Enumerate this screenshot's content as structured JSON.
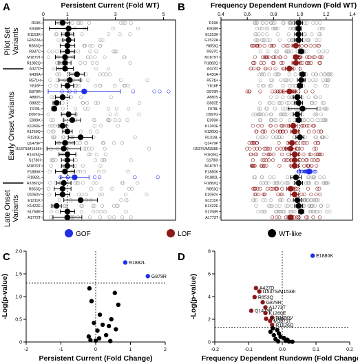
{
  "colors": {
    "gof": "#1f2ee6",
    "lof": "#8b1a1a",
    "wt": "#000000",
    "scatter_gray": "#9a9a9a"
  },
  "legend": {
    "gof": "GOF",
    "lof": "LOF",
    "wt": "WT-like"
  },
  "groups": {
    "pilot": [
      "Pilot Set",
      "Variants"
    ],
    "early": "Early Onset Variants",
    "late": [
      "Late Onset",
      "Variants"
    ]
  },
  "chart_data": [
    {
      "panel": "A",
      "type": "scatter",
      "title": "Persistent Current (Fold WT)",
      "xlim": [
        0,
        5.5
      ],
      "xticks": [
        0,
        1,
        3,
        5
      ],
      "categories": [
        "R19K",
        "K908R",
        "E1153K",
        "G1522A",
        "R853Q",
        "R937C",
        "M1879T",
        "R1882Q",
        "A427D",
        "E430A",
        "R571H",
        "Y816F",
        "G879R",
        "A880S",
        "G882E",
        "F978L",
        "D997G",
        "E999K",
        "K1260E",
        "K1260Q",
        "R1319L",
        "Q1479P",
        "I1537S/M1538I",
        "R1626Q",
        "S1780I",
        "M1879T",
        "E1880K",
        "R1882L",
        "R1882Q",
        "R853Q",
        "D1050V",
        "E1211K",
        "K1422E",
        "S1758R",
        "A1773T"
      ],
      "means": [
        0.8,
        1.05,
        1.0,
        1.05,
        1.0,
        1.0,
        0.9,
        0.9,
        0.9,
        1.4,
        1.1,
        1.0,
        1.7,
        0.8,
        0.55,
        0.45,
        1.05,
        1.2,
        0.8,
        1.0,
        1.55,
        0.9,
        0.85,
        1.0,
        1.0,
        1.0,
        0.9,
        1.3,
        0.85,
        0.8,
        0.8,
        1.55,
        0.55,
        1.0,
        1.0
      ],
      "errors": [
        0.3,
        0.8,
        0.25,
        0.25,
        0.3,
        0.3,
        0.4,
        0.25,
        0.35,
        0.3,
        0.45,
        0.25,
        1.5,
        0.3,
        0.15,
        0.1,
        0.3,
        0.35,
        0.15,
        0.2,
        0.5,
        0.4,
        0.7,
        0.35,
        0.25,
        0.25,
        0.4,
        0.6,
        0.3,
        0.35,
        0.3,
        0.7,
        0.2,
        0.3,
        0.6
      ],
      "classification": [
        "wt",
        "wt",
        "wt",
        "wt",
        "wt",
        "wt",
        "wt",
        "wt",
        "wt",
        "wt",
        "wt",
        "wt",
        "gof",
        "wt",
        "wt",
        "wt",
        "wt",
        "wt",
        "wt",
        "wt",
        "wt",
        "wt",
        "wt",
        "wt",
        "wt",
        "wt",
        "wt",
        "gof",
        "wt",
        "wt",
        "wt",
        "wt",
        "wt",
        "wt",
        "wt"
      ]
    },
    {
      "panel": "B",
      "type": "scatter",
      "title": "Frequency Dependent Rundown (Fold WT)",
      "xlim": [
        0.4,
        1.4
      ],
      "xticks": [
        0.4,
        0.6,
        0.8,
        1.0,
        1.2,
        1.4
      ],
      "xtick_labels": [
        "0.4",
        "0.6",
        "0.8",
        "1.0",
        "1.2",
        "1.4"
      ],
      "categories": [
        "R19K",
        "K908R",
        "E1153K",
        "G1522A",
        "R853Q",
        "R937C",
        "M1879T",
        "R1882Q",
        "A427D",
        "E430A",
        "R571H",
        "Y816F",
        "G879R",
        "A880S",
        "G882E",
        "F978L",
        "D997G",
        "E999K",
        "K1260E",
        "K1260Q",
        "R1319L",
        "Q1479P",
        "I1537S/M1538I",
        "R1626Q",
        "S1780I",
        "M1879T",
        "E1880K",
        "R1882L",
        "R1882Q",
        "R853Q",
        "D1050V",
        "E1211K",
        "K1422E",
        "S1758R",
        "A1773T"
      ],
      "means": [
        0.99,
        0.99,
        0.99,
        0.99,
        0.97,
        1.01,
        0.97,
        0.97,
        0.92,
        1.02,
        1.01,
        1.0,
        0.92,
        0.98,
        0.99,
        1.02,
        0.98,
        0.99,
        0.95,
        0.96,
        1.0,
        0.94,
        0.93,
        0.96,
        0.96,
        0.96,
        1.07,
        0.97,
        0.99,
        0.93,
        0.96,
        0.98,
        0.99,
        1.01,
        0.93
      ],
      "errors": [
        0.03,
        0.02,
        0.03,
        0.03,
        0.03,
        0.02,
        0.02,
        0.03,
        0.03,
        0.02,
        0.03,
        0.02,
        0.05,
        0.03,
        0.03,
        0.11,
        0.03,
        0.02,
        0.03,
        0.03,
        0.03,
        0.03,
        0.04,
        0.03,
        0.03,
        0.03,
        0.02,
        0.04,
        0.03,
        0.03,
        0.03,
        0.03,
        0.03,
        0.02,
        0.02
      ],
      "classification": [
        "wt",
        "wt",
        "wt",
        "wt",
        "lof",
        "wt",
        "lof",
        "lof",
        "lof",
        "wt",
        "wt",
        "wt",
        "lof",
        "wt",
        "wt",
        "wt",
        "wt",
        "wt",
        "lof",
        "lof",
        "wt",
        "lof",
        "lof",
        "lof",
        "lof",
        "lof",
        "gof",
        "wt",
        "wt",
        "lof",
        "lof",
        "wt",
        "wt",
        "wt",
        "lof"
      ]
    },
    {
      "panel": "C",
      "type": "scatter",
      "xlabel": "Persistent Current (Fold Change)",
      "ylabel": "-Log(p-value)",
      "xlim": [
        -2,
        2
      ],
      "ylim": [
        0,
        2
      ],
      "xticks": [
        -2,
        -1,
        0,
        1,
        2
      ],
      "yticks": [
        0,
        0.5,
        1.0,
        1.5,
        2.0
      ],
      "ytick_labels": [
        "0",
        "0.5",
        "1.0",
        "1.5",
        "2.0"
      ],
      "threshold_y": 1.3,
      "points": [
        {
          "x": 0.85,
          "y": 1.75,
          "cls": "gof",
          "label": "R1882L"
        },
        {
          "x": 1.5,
          "y": 1.45,
          "cls": "gof",
          "label": "G879R"
        },
        {
          "x": -0.18,
          "y": 1.18,
          "cls": "wt",
          "label": ""
        },
        {
          "x": 0.55,
          "y": 1.08,
          "cls": "wt",
          "label": ""
        },
        {
          "x": -0.12,
          "y": 0.9,
          "cls": "wt",
          "label": ""
        },
        {
          "x": 0.65,
          "y": 0.82,
          "cls": "wt",
          "label": ""
        },
        {
          "x": 0.12,
          "y": 0.6,
          "cls": "wt",
          "label": ""
        },
        {
          "x": 0.45,
          "y": 0.5,
          "cls": "wt",
          "label": ""
        },
        {
          "x": -0.05,
          "y": 0.42,
          "cls": "wt",
          "label": ""
        },
        {
          "x": 0.2,
          "y": 0.38,
          "cls": "wt",
          "label": ""
        },
        {
          "x": 0.38,
          "y": 0.35,
          "cls": "wt",
          "label": ""
        },
        {
          "x": 0.58,
          "y": 0.28,
          "cls": "wt",
          "label": ""
        },
        {
          "x": 0.05,
          "y": 0.25,
          "cls": "wt",
          "label": ""
        },
        {
          "x": -0.2,
          "y": 0.12,
          "cls": "wt",
          "label": ""
        },
        {
          "x": 0.3,
          "y": 0.15,
          "cls": "wt",
          "label": ""
        },
        {
          "x": 0.1,
          "y": 0.08,
          "cls": "wt",
          "label": ""
        },
        {
          "x": -0.15,
          "y": 0.04,
          "cls": "wt",
          "label": ""
        },
        {
          "x": 0.0,
          "y": 0.03,
          "cls": "wt",
          "label": ""
        },
        {
          "x": 0.42,
          "y": 0.02,
          "cls": "wt",
          "label": ""
        }
      ]
    },
    {
      "panel": "D",
      "type": "scatter",
      "xlabel": "Frequency Dependent Rundown (Fold Change)",
      "ylabel": "-Log(p-value)",
      "xlim": [
        -0.2,
        0.2
      ],
      "ylim": [
        0,
        8
      ],
      "xticks": [
        -0.2,
        -0.1,
        0.0,
        0.1,
        0.2
      ],
      "xtick_labels": [
        "-0.2",
        "-0.1",
        "0.0",
        "0.1",
        "0.2"
      ],
      "yticks": [
        0,
        2,
        4,
        6,
        8
      ],
      "threshold_y": 1.3,
      "points": [
        {
          "x": 0.09,
          "y": 7.6,
          "cls": "gof",
          "label": "E1880K"
        },
        {
          "x": -0.078,
          "y": 4.75,
          "cls": "lof",
          "label": "A427D"
        },
        {
          "x": -0.068,
          "y": 4.45,
          "cls": "lof",
          "label": "I1537S/M1538I"
        },
        {
          "x": -0.082,
          "y": 3.95,
          "cls": "lof",
          "label": "R853Q"
        },
        {
          "x": -0.058,
          "y": 3.5,
          "cls": "lof",
          "label": "G879R"
        },
        {
          "x": -0.05,
          "y": 3.05,
          "cls": "lof",
          "label": "A1773T"
        },
        {
          "x": -0.092,
          "y": 2.75,
          "cls": "lof",
          "label": "Q1479P"
        },
        {
          "x": -0.05,
          "y": 2.55,
          "cls": "lof",
          "label": "K1260E"
        },
        {
          "x": -0.03,
          "y": 2.15,
          "cls": "lof",
          "label": "D1050V"
        },
        {
          "x": -0.048,
          "y": 2.05,
          "cls": "lof",
          "label": "S1780I"
        },
        {
          "x": -0.036,
          "y": 1.85,
          "cls": "lof",
          "label": "M1879T"
        },
        {
          "x": -0.03,
          "y": 1.5,
          "cls": "lof",
          "label": "R1626Q"
        },
        {
          "x": -0.028,
          "y": 1.2,
          "cls": "wt",
          "label": ""
        },
        {
          "x": -0.015,
          "y": 1.05,
          "cls": "wt",
          "label": ""
        },
        {
          "x": -0.035,
          "y": 0.9,
          "cls": "wt",
          "label": ""
        },
        {
          "x": -0.01,
          "y": 0.75,
          "cls": "wt",
          "label": ""
        },
        {
          "x": -0.025,
          "y": 0.6,
          "cls": "wt",
          "label": ""
        },
        {
          "x": -0.005,
          "y": 0.45,
          "cls": "wt",
          "label": ""
        },
        {
          "x": 0.005,
          "y": 0.35,
          "cls": "wt",
          "label": ""
        },
        {
          "x": -0.02,
          "y": 0.25,
          "cls": "wt",
          "label": ""
        },
        {
          "x": 0.015,
          "y": 0.2,
          "cls": "wt",
          "label": ""
        },
        {
          "x": 0.01,
          "y": 0.1,
          "cls": "wt",
          "label": ""
        },
        {
          "x": -0.012,
          "y": 0.05,
          "cls": "wt",
          "label": ""
        },
        {
          "x": 0.02,
          "y": 0.04,
          "cls": "wt",
          "label": ""
        },
        {
          "x": 0.03,
          "y": 0.02,
          "cls": "wt",
          "label": ""
        }
      ]
    }
  ]
}
